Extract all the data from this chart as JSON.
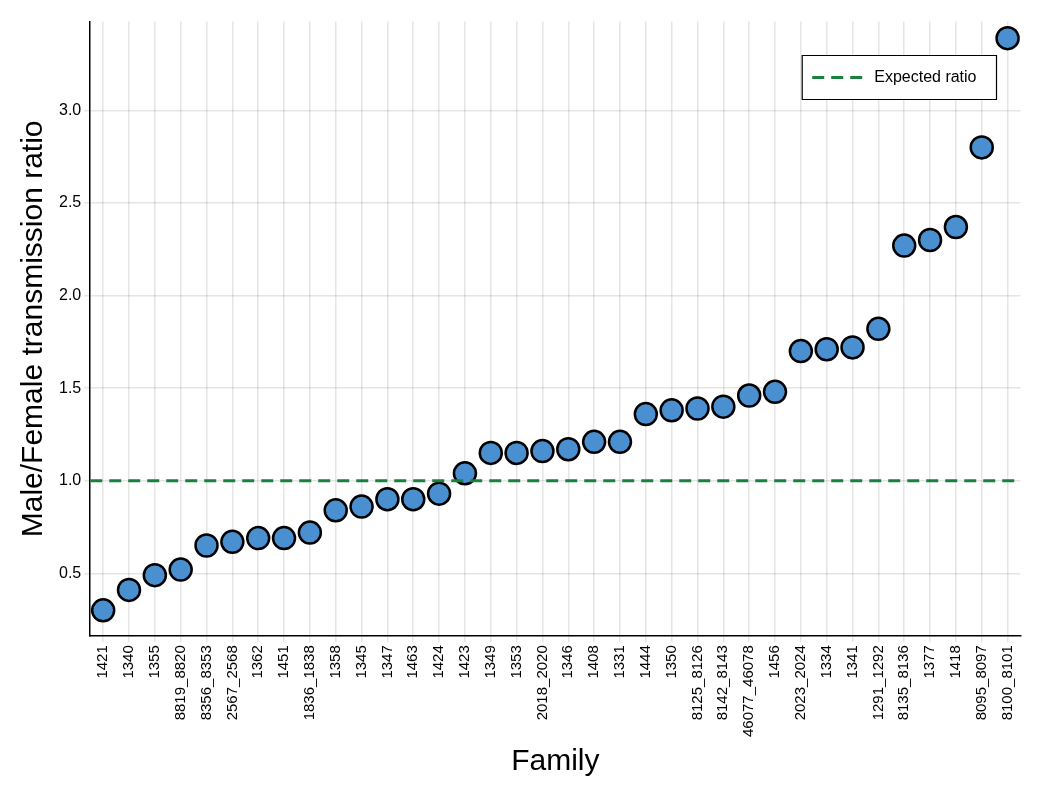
{
  "chart_data": {
    "type": "scatter",
    "xlabel": "Family",
    "ylabel": "Male/Female transmission ratio",
    "categories": [
      "1421",
      "1340",
      "1355",
      "8819_8820",
      "8356_8353",
      "2567_2568",
      "1362",
      "1451",
      "1836_1838",
      "1358",
      "1345",
      "1347",
      "1463",
      "1424",
      "1423",
      "1349",
      "1353",
      "2018_2020",
      "1346",
      "1408",
      "1331",
      "1444",
      "1350",
      "8125_8126",
      "8142_8143",
      "46077_46078",
      "1456",
      "2023_2024",
      "1334",
      "1341",
      "1291_1292",
      "8135_8136",
      "1377",
      "1418",
      "8095_8097",
      "8100_8101"
    ],
    "series": [
      {
        "color": "#4a90d0",
        "values": [
          0.3,
          0.41,
          0.49,
          0.52,
          0.65,
          0.67,
          0.69,
          0.69,
          0.72,
          0.84,
          0.86,
          0.9,
          0.9,
          0.93,
          1.04,
          1.15,
          1.15,
          1.16,
          1.17,
          1.21,
          1.21,
          1.36,
          1.38,
          1.39,
          1.4,
          1.46,
          1.48,
          1.7,
          1.71,
          1.72,
          1.82,
          2.27,
          2.3,
          2.37,
          2.8,
          3.39
        ]
      }
    ],
    "ylim": [
      0.16,
      3.48
    ],
    "yticks": [
      0.5,
      {
        "value": 1,
        "label": "1.0"
      },
      1.5,
      {
        "value": 2,
        "label": "2.0"
      },
      2.5,
      {
        "value": 3,
        "label": "3.0"
      }
    ],
    "ref_lines": [
      {
        "axis": "y",
        "value": 1,
        "label": "Expected ratio",
        "color": "#1a8040",
        "line_style": "dashed"
      }
    ],
    "grid": true,
    "legend": "top right",
    "marker": "circle"
  }
}
